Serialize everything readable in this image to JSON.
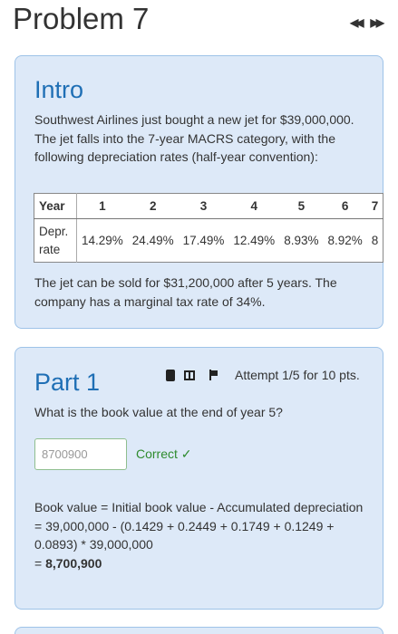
{
  "header": {
    "title": "Problem 7",
    "prev_label": "◀◀",
    "next_label": "▶▶"
  },
  "intro": {
    "title": "Intro",
    "text": "Southwest Airlines just bought a new jet for $39,000,000. The jet falls into the 7-year MACRS category, with the following depreciation rates (half-year convention):",
    "table": {
      "row_header_year": "Year",
      "row_header_rate": "Depr. rate",
      "years": [
        "1",
        "2",
        "3",
        "4",
        "5",
        "6",
        "7"
      ],
      "rates": [
        "14.29%",
        "24.49%",
        "17.49%",
        "12.49%",
        "8.93%",
        "8.92%",
        "8"
      ]
    },
    "text2": "The jet can be sold for $31,200,000 after 5 years. The company has a marginal tax rate of 34%."
  },
  "part1": {
    "title": "Part 1",
    "attempt": "Attempt 1/5 for 10 pts.",
    "question": "What is the book value at the end of year 5?",
    "answer_value": "8700900",
    "status": "Correct ✓",
    "explain_line1": "Book value = Initial book value - Accumulated depreciation",
    "explain_line2": "= 39,000,000 - (0.1429 + 0.2449 + 0.1749 + 0.1249 + 0.0893) * 39,000,000",
    "explain_eq": "= ",
    "explain_result": "8,700,900"
  }
}
